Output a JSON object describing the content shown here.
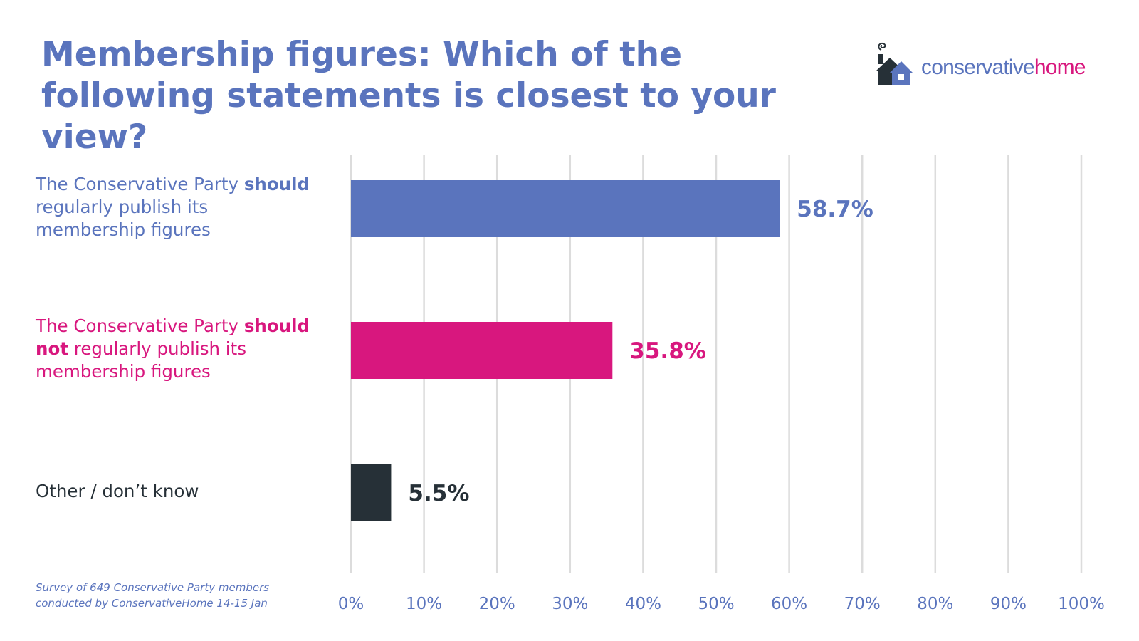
{
  "title_lines": [
    "Membership figures: Which of the",
    "following statements is closest to your view?"
  ],
  "logo": {
    "text_a": "conservative",
    "text_b": "home",
    "icon": "house-icon"
  },
  "note_lines": [
    "Survey of 649 Conservative Party members",
    "conducted by ConservativeHome 14-15 Jan"
  ],
  "colors": {
    "blue": "#5a74bd",
    "pink": "#d8177e",
    "dark": "#263037",
    "grid": "#dcdcdc"
  },
  "chart_data": {
    "type": "bar",
    "orientation": "horizontal",
    "title": "Membership figures: Which of the following statements is closest to your view?",
    "xlim": [
      0,
      100
    ],
    "x_ticks": [
      "0%",
      "10%",
      "20%",
      "30%",
      "40%",
      "50%",
      "60%",
      "70%",
      "80%",
      "90%",
      "100%"
    ],
    "grid": "vertical",
    "categories": [
      "The Conservative Party should regularly publish its membership figures",
      "The Conservative Party should not regularly publish its membership figures",
      "Other / don’t know"
    ],
    "category_parts": [
      [
        "The Conservative Party ",
        "should",
        "",
        " regularly publish its",
        "membership figures"
      ],
      [
        "The Conservative Party ",
        "should",
        "not",
        " regularly publish its",
        "membership figures"
      ],
      [
        "Other / don’t know",
        "",
        "",
        "",
        ""
      ]
    ],
    "values": [
      58.7,
      35.8,
      5.5
    ],
    "value_labels": [
      "58.7%",
      "35.8%",
      "5.5%"
    ],
    "bar_colors": [
      "#5a74bd",
      "#d8177e",
      "#263037"
    ]
  }
}
